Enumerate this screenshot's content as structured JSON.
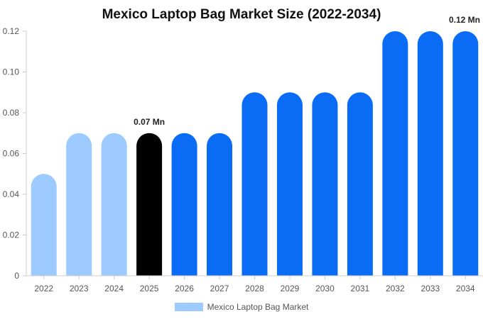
{
  "chart_data": {
    "type": "bar",
    "title": "Mexico Laptop Bag Market Size (2022-2034)",
    "categories": [
      "2022",
      "2023",
      "2024",
      "2025",
      "2026",
      "2027",
      "2028",
      "2029",
      "2030",
      "2031",
      "2032",
      "2033",
      "2034"
    ],
    "series": [
      {
        "name": "Mexico Laptop Bag Market",
        "values": [
          0.05,
          0.07,
          0.07,
          0.07,
          0.07,
          0.07,
          0.09,
          0.09,
          0.09,
          0.09,
          0.12,
          0.12,
          0.12
        ]
      }
    ],
    "bar_colors": [
      "#9ecbff",
      "#9ecbff",
      "#9ecbff",
      "#000000",
      "#0a6cf5",
      "#0a6cf5",
      "#0a6cf5",
      "#0a6cf5",
      "#0a6cf5",
      "#0a6cf5",
      "#0a6cf5",
      "#0a6cf5",
      "#0a6cf5"
    ],
    "ylim": [
      0,
      0.12
    ],
    "yticks": [
      "0",
      "0.02",
      "0.04",
      "0.06",
      "0.08",
      "0.10",
      "0.12"
    ],
    "annotations": [
      {
        "category": "2025",
        "text": "0.07 Mn"
      },
      {
        "category": "2034",
        "text": "0.12 Mn"
      }
    ],
    "legend": {
      "position": "bottom",
      "color": "#9ecbff"
    }
  }
}
